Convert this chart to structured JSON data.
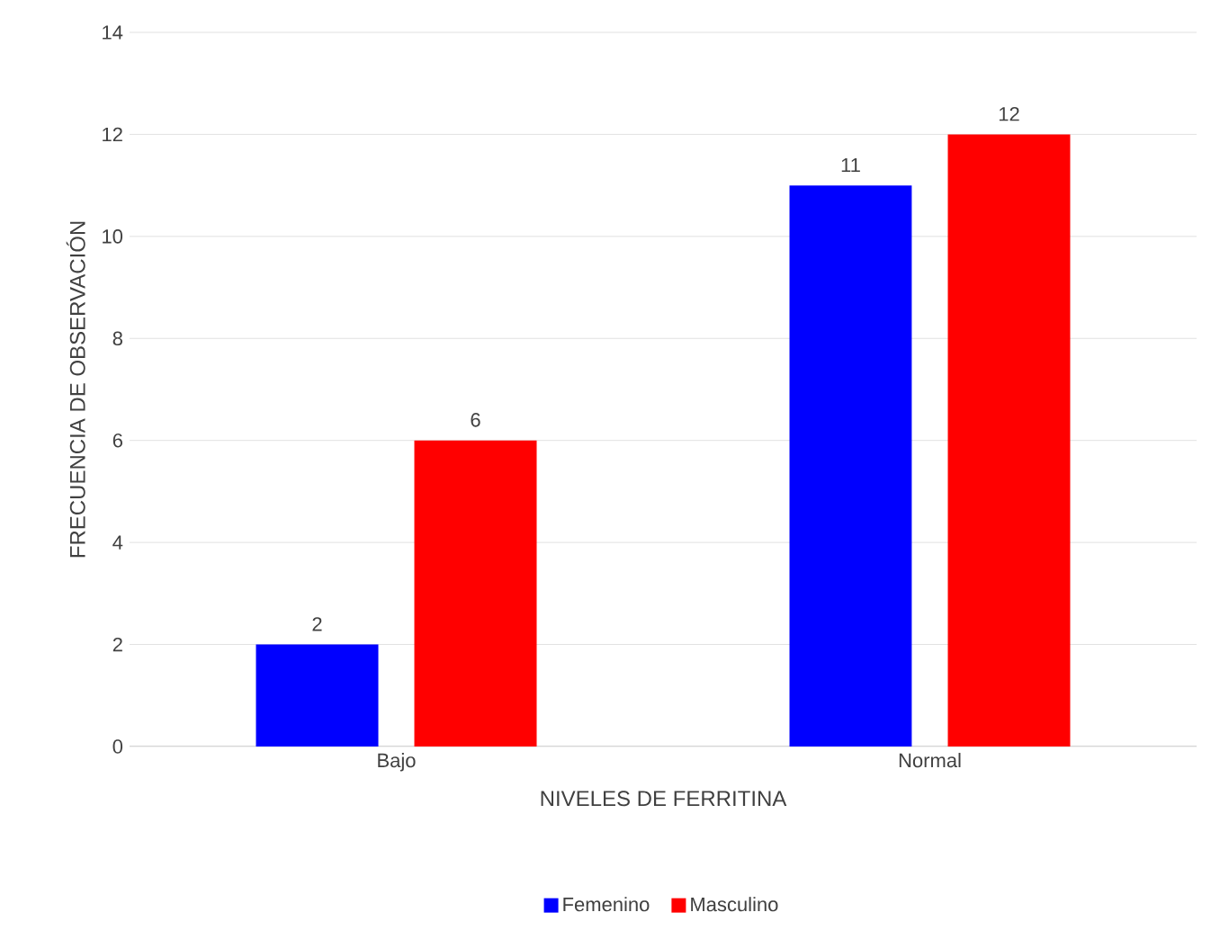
{
  "chart_data": {
    "type": "bar",
    "xlabel": "NIVELES DE FERRITINA",
    "ylabel": "FRECUENCIA DE OBSERVACIÓN",
    "categories": [
      "Bajo",
      "Normal"
    ],
    "series": [
      {
        "name": "Femenino",
        "color": "#0000ff",
        "values": [
          2,
          11
        ]
      },
      {
        "name": "Masculino",
        "color": "#ff0000",
        "values": [
          6,
          12
        ]
      }
    ],
    "ylim": [
      0,
      14
    ],
    "yticks": [
      0,
      2,
      4,
      6,
      8,
      10,
      12,
      14
    ],
    "grid": "y",
    "legend": "bottom",
    "data_labels": true
  }
}
